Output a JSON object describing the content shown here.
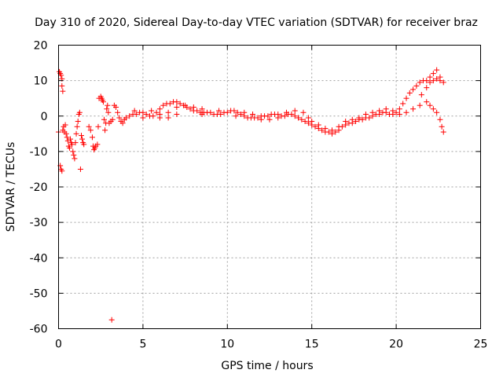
{
  "chart_data": {
    "type": "scatter",
    "title": "Day 310 of 2020, Sidereal Day-to-day VTEC variation (SDTVAR) for receiver braz",
    "xlabel": "GPS time / hours",
    "ylabel": "SDTVAR / TECUs",
    "xlim": [
      0,
      25
    ],
    "ylim": [
      -60,
      20
    ],
    "x_ticks": [
      0,
      5,
      10,
      15,
      20,
      25
    ],
    "y_ticks": [
      -60,
      -50,
      -40,
      -30,
      -20,
      -10,
      0,
      10,
      20
    ],
    "grid": true,
    "marker": "+",
    "color": "#ff0000",
    "series": [
      {
        "name": "SDTVAR",
        "points": [
          [
            0.0,
            -4.5
          ],
          [
            0.05,
            12.5
          ],
          [
            0.1,
            12.0
          ],
          [
            0.15,
            11.5
          ],
          [
            0.2,
            10.5
          ],
          [
            0.2,
            8.5
          ],
          [
            0.25,
            7.0
          ],
          [
            0.1,
            -14.0
          ],
          [
            0.15,
            -15.0
          ],
          [
            0.2,
            -15.5
          ],
          [
            0.25,
            -4.0
          ],
          [
            0.3,
            -3.0
          ],
          [
            0.35,
            -4.5
          ],
          [
            0.4,
            -2.5
          ],
          [
            0.45,
            -5.0
          ],
          [
            0.5,
            -6.0
          ],
          [
            0.55,
            -7.0
          ],
          [
            0.6,
            -8.5
          ],
          [
            0.65,
            -9.0
          ],
          [
            0.7,
            -6.5
          ],
          [
            0.75,
            -7.5
          ],
          [
            0.8,
            -8.0
          ],
          [
            0.85,
            -10.0
          ],
          [
            0.9,
            -11.0
          ],
          [
            0.95,
            -12.0
          ],
          [
            1.0,
            -7.5
          ],
          [
            1.05,
            -5.0
          ],
          [
            1.1,
            -3.0
          ],
          [
            1.15,
            -1.5
          ],
          [
            1.2,
            0.5
          ],
          [
            1.25,
            1.0
          ],
          [
            1.3,
            -15.0
          ],
          [
            1.35,
            -5.5
          ],
          [
            1.4,
            -6.5
          ],
          [
            1.45,
            -7.5
          ],
          [
            1.5,
            -8.0
          ],
          [
            1.8,
            -3.0
          ],
          [
            1.9,
            -4.0
          ],
          [
            2.0,
            -6.0
          ],
          [
            2.05,
            -8.5
          ],
          [
            2.1,
            -9.5
          ],
          [
            2.15,
            -9.0
          ],
          [
            2.2,
            -8.5
          ],
          [
            2.3,
            -8.0
          ],
          [
            2.35,
            -3.0
          ],
          [
            2.4,
            5.0
          ],
          [
            2.5,
            5.5
          ],
          [
            2.55,
            5.0
          ],
          [
            2.6,
            4.5
          ],
          [
            2.65,
            4.0
          ],
          [
            2.7,
            -1.0
          ],
          [
            2.75,
            -4.0
          ],
          [
            2.8,
            -2.0
          ],
          [
            2.85,
            2.0
          ],
          [
            2.9,
            3.0
          ],
          [
            2.95,
            1.0
          ],
          [
            3.0,
            -2.0
          ],
          [
            3.1,
            -1.5
          ],
          [
            3.15,
            -57.5
          ],
          [
            3.2,
            -1.0
          ],
          [
            3.3,
            3.0
          ],
          [
            3.4,
            2.5
          ],
          [
            3.5,
            1.0
          ],
          [
            3.6,
            -0.5
          ],
          [
            3.7,
            -1.5
          ],
          [
            3.8,
            -2.0
          ],
          [
            3.9,
            -1.0
          ],
          [
            4.0,
            -0.5
          ],
          [
            4.2,
            0.0
          ],
          [
            4.4,
            0.5
          ],
          [
            4.6,
            0.5
          ],
          [
            4.8,
            1.0
          ],
          [
            5.0,
            1.0
          ],
          [
            5.2,
            0.5
          ],
          [
            5.4,
            0.0
          ],
          [
            5.6,
            0.0
          ],
          [
            5.8,
            1.0
          ],
          [
            6.0,
            2.0
          ],
          [
            6.2,
            3.0
          ],
          [
            6.4,
            3.5
          ],
          [
            6.6,
            3.5
          ],
          [
            6.8,
            4.0
          ],
          [
            7.0,
            4.0
          ],
          [
            7.2,
            3.5
          ],
          [
            7.4,
            3.0
          ],
          [
            7.6,
            2.5
          ],
          [
            7.8,
            2.0
          ],
          [
            8.0,
            1.5
          ],
          [
            8.2,
            1.5
          ],
          [
            8.4,
            1.0
          ],
          [
            8.6,
            1.0
          ],
          [
            8.8,
            1.0
          ],
          [
            9.0,
            1.0
          ],
          [
            9.2,
            0.5
          ],
          [
            9.4,
            0.5
          ],
          [
            9.6,
            0.5
          ],
          [
            9.8,
            1.0
          ],
          [
            10.0,
            1.0
          ],
          [
            10.2,
            1.5
          ],
          [
            10.4,
            1.5
          ],
          [
            10.6,
            1.0
          ],
          [
            10.8,
            0.5
          ],
          [
            11.0,
            0.0
          ],
          [
            11.2,
            -0.5
          ],
          [
            11.4,
            -0.5
          ],
          [
            11.6,
            -0.5
          ],
          [
            11.8,
            -0.5
          ],
          [
            12.0,
            0.0
          ],
          [
            12.2,
            0.0
          ],
          [
            12.4,
            0.0
          ],
          [
            12.6,
            0.5
          ],
          [
            12.8,
            0.5
          ],
          [
            13.0,
            0.5
          ],
          [
            13.2,
            0.0
          ],
          [
            13.4,
            0.0
          ],
          [
            13.6,
            0.5
          ],
          [
            13.8,
            0.5
          ],
          [
            14.0,
            0.0
          ],
          [
            14.2,
            -0.5
          ],
          [
            14.4,
            -1.0
          ],
          [
            14.6,
            -1.5
          ],
          [
            14.8,
            -2.0
          ],
          [
            15.0,
            -2.5
          ],
          [
            15.2,
            -3.0
          ],
          [
            15.4,
            -3.5
          ],
          [
            15.6,
            -4.0
          ],
          [
            15.8,
            -4.5
          ],
          [
            16.0,
            -4.5
          ],
          [
            16.2,
            -5.0
          ],
          [
            16.4,
            -4.5
          ],
          [
            16.6,
            -4.0
          ],
          [
            16.8,
            -3.0
          ],
          [
            17.0,
            -2.5
          ],
          [
            17.2,
            -2.0
          ],
          [
            17.4,
            -2.0
          ],
          [
            17.6,
            -1.5
          ],
          [
            17.8,
            -1.0
          ],
          [
            18.0,
            -1.0
          ],
          [
            18.2,
            -0.5
          ],
          [
            18.4,
            -0.5
          ],
          [
            18.6,
            0.0
          ],
          [
            18.8,
            0.5
          ],
          [
            19.0,
            0.5
          ],
          [
            19.2,
            1.0
          ],
          [
            19.4,
            1.0
          ],
          [
            19.6,
            0.5
          ],
          [
            19.8,
            0.5
          ],
          [
            20.0,
            1.0
          ],
          [
            20.2,
            2.0
          ],
          [
            20.4,
            3.5
          ],
          [
            20.6,
            5.0
          ],
          [
            20.8,
            6.5
          ],
          [
            21.0,
            7.5
          ],
          [
            21.2,
            8.5
          ],
          [
            21.4,
            9.5
          ],
          [
            21.6,
            10.0
          ],
          [
            21.8,
            10.0
          ],
          [
            22.0,
            9.5
          ],
          [
            22.2,
            10.0
          ],
          [
            22.4,
            10.5
          ],
          [
            22.6,
            10.0
          ],
          [
            22.8,
            9.5
          ],
          [
            15.0,
            -1.5
          ],
          [
            15.4,
            -2.5
          ],
          [
            15.8,
            -3.5
          ],
          [
            16.2,
            -4.0
          ],
          [
            16.6,
            -3.0
          ],
          [
            17.0,
            -1.5
          ],
          [
            17.4,
            -1.0
          ],
          [
            17.8,
            -0.5
          ],
          [
            18.2,
            0.5
          ],
          [
            18.6,
            1.0
          ],
          [
            19.0,
            1.5
          ],
          [
            19.4,
            2.0
          ],
          [
            19.8,
            1.5
          ],
          [
            20.2,
            0.5
          ],
          [
            20.6,
            1.0
          ],
          [
            21.0,
            2.0
          ],
          [
            21.4,
            3.0
          ],
          [
            21.8,
            4.0
          ],
          [
            22.0,
            3.0
          ],
          [
            22.2,
            2.0
          ],
          [
            22.4,
            1.0
          ],
          [
            22.6,
            -1.0
          ],
          [
            22.7,
            -3.0
          ],
          [
            22.8,
            -4.5
          ],
          [
            21.5,
            6.0
          ],
          [
            21.8,
            8.0
          ],
          [
            22.0,
            11.0
          ],
          [
            22.2,
            12.0
          ],
          [
            22.4,
            13.0
          ],
          [
            22.6,
            11.0
          ],
          [
            6.0,
            0.5
          ],
          [
            6.5,
            1.0
          ],
          [
            7.0,
            2.5
          ],
          [
            7.5,
            3.0
          ],
          [
            8.0,
            2.5
          ],
          [
            8.5,
            2.0
          ],
          [
            4.5,
            1.5
          ],
          [
            5.0,
            -0.5
          ],
          [
            5.5,
            1.5
          ],
          [
            6.0,
            -0.5
          ],
          [
            6.5,
            -0.5
          ],
          [
            7.0,
            0.5
          ],
          [
            11.0,
            1.0
          ],
          [
            11.5,
            0.5
          ],
          [
            12.0,
            -1.0
          ],
          [
            12.5,
            -1.0
          ],
          [
            13.0,
            -0.5
          ],
          [
            13.5,
            1.0
          ],
          [
            14.0,
            1.5
          ],
          [
            14.5,
            1.0
          ],
          [
            14.8,
            -0.5
          ],
          [
            10.5,
            0.0
          ],
          [
            9.5,
            1.5
          ],
          [
            8.5,
            0.5
          ]
        ]
      }
    ]
  }
}
